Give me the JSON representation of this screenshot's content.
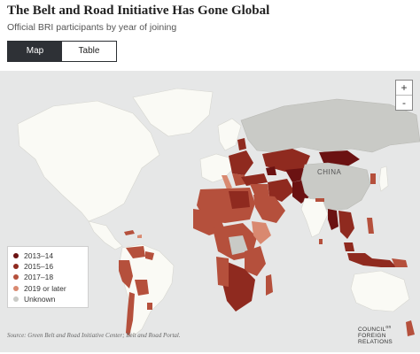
{
  "header": {
    "title": "The Belt and Road Initiative Has Gone Global",
    "subtitle": "Official BRI participants by year of joining"
  },
  "view_toggle": {
    "map_label": "Map",
    "table_label": "Table",
    "active": "Map"
  },
  "zoom": {
    "in_label": "+",
    "out_label": "-"
  },
  "map": {
    "highlight_label": "CHINA",
    "colors": {
      "ocean": "#e6e7e7",
      "non_participant": "#fafaf5",
      "china": "#c9cac6",
      "unknown": "#c9cac6",
      "2013-14": "#6b1212",
      "2015-16": "#8f2a1f",
      "2017-18": "#b5503c",
      "2019 or later": "#d98970"
    }
  },
  "legend": {
    "items": [
      {
        "label": "2013–14",
        "color": "#6b1212"
      },
      {
        "label": "2015–16",
        "color": "#8f2a1f"
      },
      {
        "label": "2017–18",
        "color": "#b5503c"
      },
      {
        "label": "2019 or later",
        "color": "#d98970"
      },
      {
        "label": "Unknown",
        "color": "#c9cac6"
      }
    ]
  },
  "footer": {
    "source": "Source: Green Belt and Road Initiative Center; Belt and Road Portal.",
    "logo_line1": "COUNCIL",
    "logo_line1b": "on",
    "logo_line2": "FOREIGN",
    "logo_line3": "RELATIONS"
  }
}
